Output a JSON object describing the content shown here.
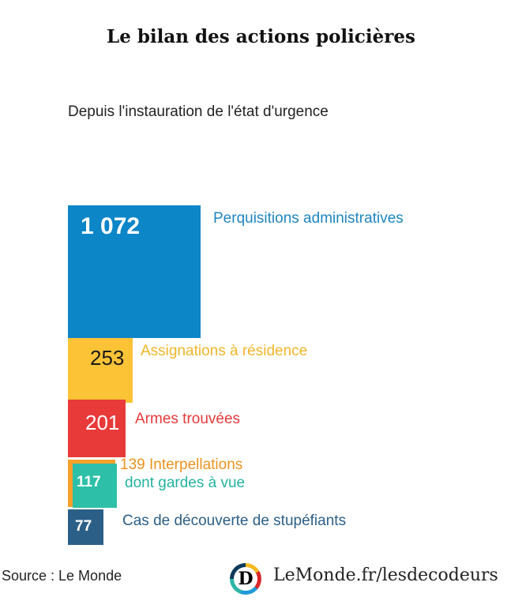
{
  "title": "Le bilan des actions policières",
  "subtitle": "Depuis l'instauration de l'état d'urgence",
  "source": "Source : Le Monde",
  "brand": "LeMonde.fr/lesdecodeurs",
  "logo_letter": "D",
  "chart_data": {
    "type": "bar",
    "title": "Le bilan des actions policières",
    "subtitle": "Depuis l'instauration de l'état d'urgence",
    "categories": [
      "Perquisitions administratives",
      "Assignations à résidence",
      "Armes trouvées",
      "139 Interpellations",
      "dont gardes à vue",
      "Cas de découverte de stupéfiants"
    ],
    "values": [
      1072,
      253,
      201,
      139,
      117,
      77
    ],
    "value_labels": [
      "1 072",
      "253",
      "201",
      "",
      "117",
      "77"
    ],
    "colors": [
      "#0d86c8",
      "#fcc336",
      "#e93a3a",
      "#f5a12a",
      "#2dbfa7",
      "#2c5f88"
    ],
    "label_colors": [
      "#1f86c1",
      "#f0b62a",
      "#e53a3a",
      "#eb9420",
      "#24b3a0",
      "#2c5f88"
    ]
  }
}
